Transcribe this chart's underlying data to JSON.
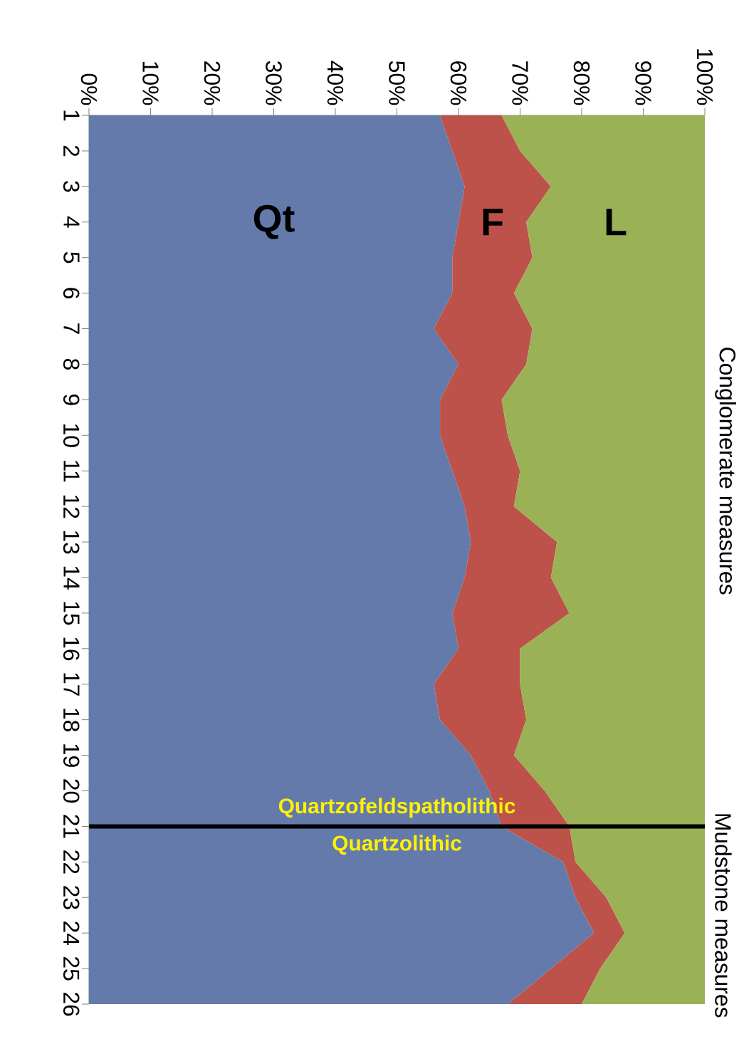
{
  "chart_data": {
    "type": "area",
    "stacked": true,
    "orientation": "horizontal",
    "x": [
      1,
      2,
      3,
      4,
      5,
      6,
      7,
      8,
      9,
      10,
      11,
      12,
      13,
      14,
      15,
      16,
      17,
      18,
      19,
      20,
      21,
      22,
      23,
      24,
      25,
      26
    ],
    "ylim": [
      26,
      1
    ],
    "yticks": [
      1,
      2,
      3,
      4,
      5,
      6,
      7,
      8,
      9,
      10,
      11,
      12,
      13,
      14,
      15,
      16,
      17,
      18,
      19,
      20,
      21,
      22,
      23,
      24,
      25,
      26
    ],
    "xlim": [
      0,
      100
    ],
    "xticks": [
      {
        "value": 0,
        "label": "0%"
      },
      {
        "value": 10,
        "label": "10%"
      },
      {
        "value": 20,
        "label": "20%"
      },
      {
        "value": 30,
        "label": "30%"
      },
      {
        "value": 40,
        "label": "40%"
      },
      {
        "value": 50,
        "label": "50%"
      },
      {
        "value": 60,
        "label": "60%"
      },
      {
        "value": 70,
        "label": "70%"
      },
      {
        "value": 80,
        "label": "80%"
      },
      {
        "value": 90,
        "label": "90%"
      },
      {
        "value": 100,
        "label": "100%"
      }
    ],
    "series": [
      {
        "name": "Qt",
        "color": "#647aab",
        "values": [
          57,
          59,
          61,
          60,
          59,
          59,
          56,
          60,
          57,
          57,
          59,
          61,
          62,
          61,
          59,
          60,
          56,
          57,
          62,
          65,
          67,
          77,
          79,
          82,
          75,
          68
        ]
      },
      {
        "name": "F",
        "color": "#bd524b",
        "values": [
          10,
          11,
          14,
          11,
          13,
          10,
          16,
          11,
          10,
          11,
          11,
          8,
          14,
          14,
          19,
          10,
          14,
          14,
          7,
          9,
          11,
          2,
          5,
          5,
          8,
          12
        ]
      },
      {
        "name": "L",
        "color": "#9bb155",
        "values": [
          33,
          30,
          25,
          29,
          28,
          31,
          28,
          29,
          33,
          32,
          30,
          31,
          24,
          25,
          22,
          30,
          30,
          29,
          31,
          26,
          22,
          21,
          16,
          13,
          17,
          20
        ]
      }
    ],
    "ref_lines": [
      {
        "axis": "y",
        "value": 21,
        "color": "#000000"
      }
    ],
    "annotations": [
      "Quartzofeldspatholithic",
      "Quartzolithic",
      "Conglomerate measures",
      "Mudstone measures"
    ]
  }
}
